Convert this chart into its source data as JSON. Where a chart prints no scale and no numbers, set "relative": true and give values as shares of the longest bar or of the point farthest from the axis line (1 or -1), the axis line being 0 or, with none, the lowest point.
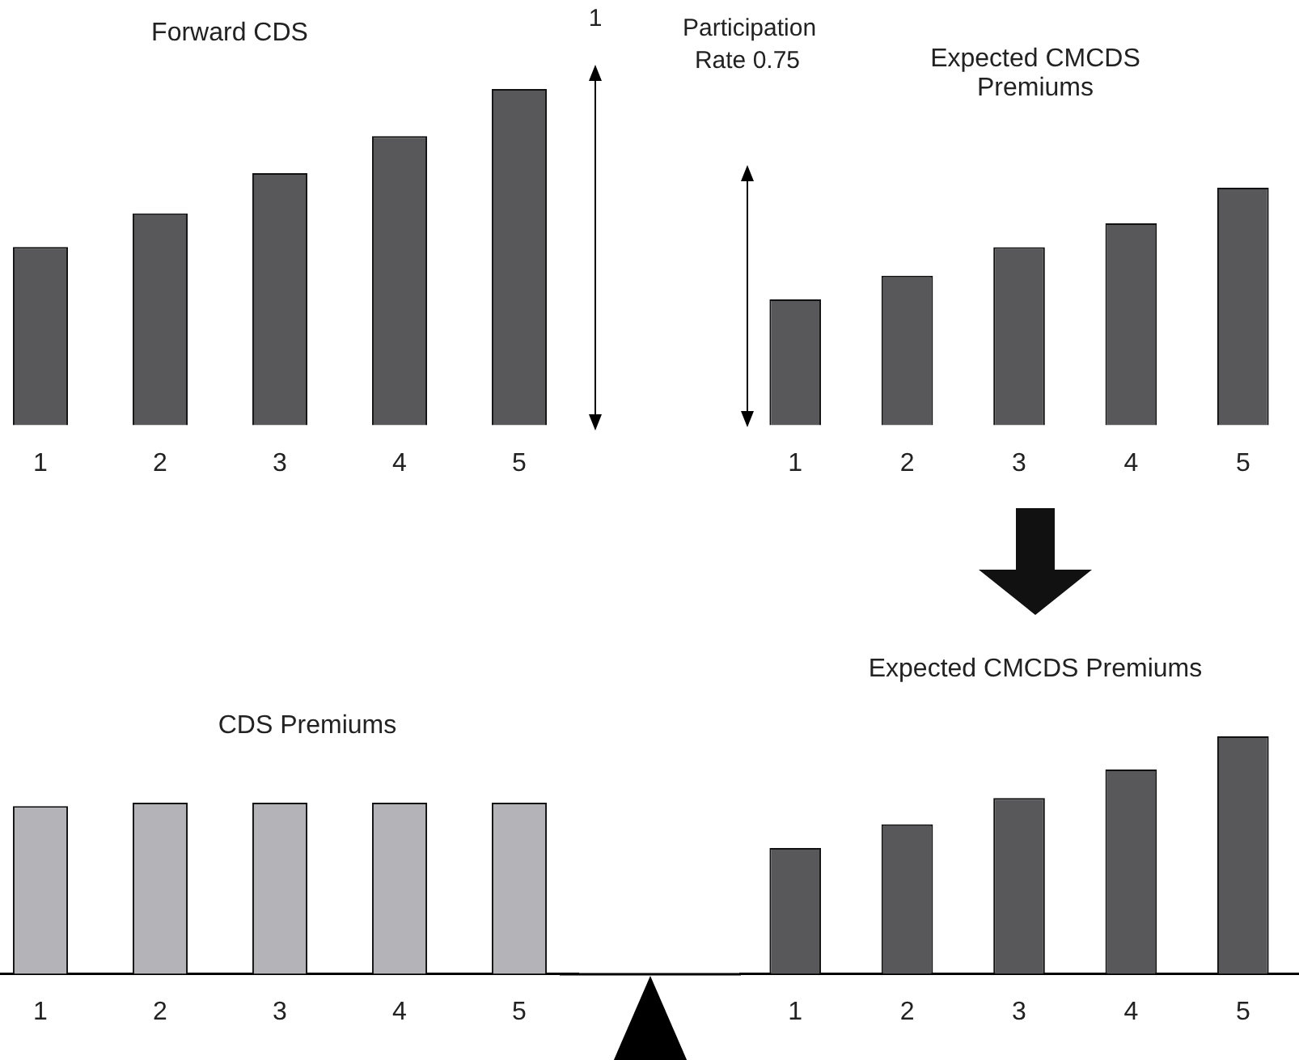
{
  "chart_data": [
    {
      "type": "bar",
      "title": "Forward CDS",
      "categories": [
        "1",
        "2",
        "3",
        "4",
        "5"
      ],
      "values": [
        0.53,
        0.63,
        0.75,
        0.86,
        1
      ],
      "color": "#58585a",
      "relative": true,
      "annotations": [
        "1"
      ]
    },
    {
      "type": "bar",
      "title": "Expected CMCDS Premiums",
      "categories": [
        "1",
        "2",
        "3",
        "4",
        "5"
      ],
      "values": [
        0.53,
        0.63,
        0.75,
        0.85,
        1
      ],
      "color": "#58585a",
      "relative": true,
      "annotations": [
        "Participation Rate 0.75"
      ]
    },
    {
      "type": "bar",
      "title": "CDS Premiums",
      "categories": [
        "1",
        "2",
        "3",
        "4",
        "5"
      ],
      "values": [
        0.98,
        1,
        1,
        1,
        1
      ],
      "color": "#b4b4b8",
      "relative": true
    },
    {
      "type": "bar",
      "title": "Expected CMCDS Premiums",
      "categories": [
        "1",
        "2",
        "3",
        "4",
        "5"
      ],
      "values": [
        0.53,
        0.63,
        0.74,
        0.86,
        1
      ],
      "color": "#58585a",
      "relative": true
    }
  ]
}
